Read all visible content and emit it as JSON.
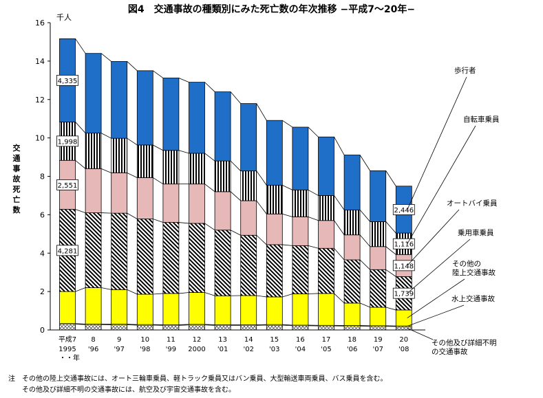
{
  "title": "図4　交通事故の種類別にみた死亡数の年次推移 −平成7〜20年−",
  "notes": [
    "注　その他の陸上交通事故には、オート三輪車乗員、軽トラック乗員又はバン乗員、大型輸送車両乗員、バス乗員を含む。",
    "　　その他及び詳細不明の交通事故には、航空及び宇宙交通事故を含む。"
  ],
  "chart_data": {
    "type": "bar",
    "stacked": true,
    "title": "図4　交通事故の種類別にみた死亡数の年次推移 −平成7〜20年−",
    "ylabel": "交通事故死亡数",
    "unit": "千人",
    "xlabel": "・・年",
    "ylim": [
      0,
      16
    ],
    "yticks": [
      "0",
      "2",
      "4",
      "6",
      "8",
      "10",
      "12",
      "14",
      "16"
    ],
    "categories": [
      {
        "top": "平成7",
        "bottom": "1995"
      },
      {
        "top": "8",
        "bottom": "'96"
      },
      {
        "top": "9",
        "bottom": "'97"
      },
      {
        "top": "10",
        "bottom": "'98"
      },
      {
        "top": "11",
        "bottom": "'99"
      },
      {
        "top": "12",
        "bottom": "2000"
      },
      {
        "top": "13",
        "bottom": "'01"
      },
      {
        "top": "14",
        "bottom": "'02"
      },
      {
        "top": "15",
        "bottom": "'03"
      },
      {
        "top": "16",
        "bottom": "'04"
      },
      {
        "top": "17",
        "bottom": "'05"
      },
      {
        "top": "18",
        "bottom": "'06"
      },
      {
        "top": "19",
        "bottom": "'07"
      },
      {
        "top": "20",
        "bottom": "'08"
      }
    ],
    "series": [
      {
        "name": "その他及び詳細不明の交通事故",
        "color": "#ffffff",
        "pattern": "cross",
        "values": [
          0.3,
          0.28,
          0.27,
          0.25,
          0.24,
          0.26,
          0.24,
          0.24,
          0.25,
          0.22,
          0.21,
          0.2,
          0.19,
          0.18
        ]
      },
      {
        "name": "水上交通事故",
        "color": "#ffff00",
        "pattern": "none",
        "values": [
          0.03,
          0.03,
          0.03,
          0.03,
          0.03,
          0.03,
          0.03,
          0.03,
          0.03,
          0.03,
          0.03,
          0.03,
          0.03,
          0.03
        ]
      },
      {
        "name": "その他の陸上交通事故",
        "color": "#ffff00",
        "pattern": "none",
        "values": [
          1.67,
          1.89,
          1.8,
          1.58,
          1.63,
          1.66,
          1.51,
          1.52,
          1.44,
          1.63,
          1.66,
          1.17,
          0.96,
          0.83
        ]
      },
      {
        "name": "乗用車乗員",
        "color": "#ffffff",
        "pattern": "diag",
        "values": [
          4.281,
          3.9,
          3.98,
          3.92,
          3.7,
          3.6,
          3.42,
          3.14,
          2.72,
          2.51,
          2.35,
          2.25,
          1.96,
          1.739
        ]
      },
      {
        "name": "オートバイ乗員",
        "color": "#e6b8b7",
        "pattern": "none",
        "values": [
          2.551,
          2.3,
          2.1,
          2.15,
          2.0,
          2.05,
          2.0,
          1.8,
          1.6,
          1.5,
          1.45,
          1.3,
          1.2,
          1.148
        ]
      },
      {
        "name": "自転車乗員",
        "color": "#ffffff",
        "pattern": "vert",
        "values": [
          1.998,
          1.85,
          1.8,
          1.7,
          1.75,
          1.6,
          1.6,
          1.55,
          1.5,
          1.4,
          1.3,
          1.3,
          1.3,
          1.116
        ]
      },
      {
        "name": "歩行者",
        "color": "#1f6fc8",
        "pattern": "none",
        "values": [
          4.335,
          4.15,
          4.0,
          3.87,
          3.77,
          3.7,
          3.6,
          3.51,
          3.37,
          3.27,
          3.05,
          2.86,
          2.65,
          2.446
        ]
      }
    ],
    "data_labels": [
      {
        "series": 6,
        "index": 0,
        "text": "4,335"
      },
      {
        "series": 5,
        "index": 0,
        "text": "1,998"
      },
      {
        "series": 4,
        "index": 0,
        "text": "2,551"
      },
      {
        "series": 3,
        "index": 0,
        "text": "4,281"
      },
      {
        "series": 6,
        "index": 13,
        "text": "2,446"
      },
      {
        "series": 5,
        "index": 13,
        "text": "1,116"
      },
      {
        "series": 4,
        "index": 13,
        "text": "1,148"
      },
      {
        "series": 3,
        "index": 13,
        "text": "1,739"
      }
    ],
    "legend": [
      {
        "text": [
          "歩行者"
        ],
        "series": 6
      },
      {
        "text": [
          "自転車乗員"
        ],
        "series": 5
      },
      {
        "text": [
          "オートバイ乗員"
        ],
        "series": 4
      },
      {
        "text": [
          "乗用車乗員"
        ],
        "series": 3
      },
      {
        "text": [
          "その他の",
          "陸上交通事故"
        ],
        "series": 2
      },
      {
        "text": [
          "水上交通事故"
        ],
        "series": 1
      },
      {
        "text": [
          "その他及び詳細不明",
          "の交通事故"
        ],
        "series": 0
      }
    ]
  }
}
